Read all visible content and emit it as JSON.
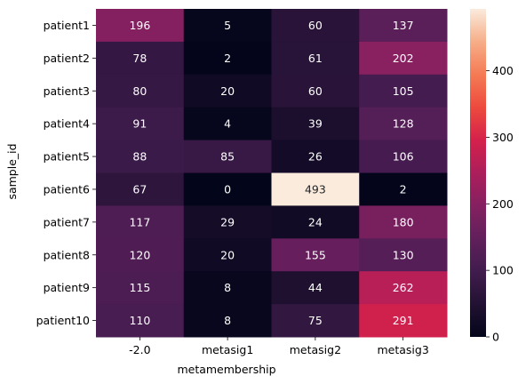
{
  "chart_data": {
    "type": "heatmap",
    "title": "",
    "xlabel": "metamembership",
    "ylabel": "sample_id",
    "x_categories": [
      "-2.0",
      "metasig1",
      "metasig2",
      "metasig3"
    ],
    "y_categories": [
      "patient1",
      "patient2",
      "patient3",
      "patient4",
      "patient5",
      "patient6",
      "patient7",
      "patient8",
      "patient9",
      "patient10"
    ],
    "values": [
      [
        196,
        5,
        60,
        137
      ],
      [
        78,
        2,
        61,
        202
      ],
      [
        80,
        20,
        60,
        105
      ],
      [
        91,
        4,
        39,
        128
      ],
      [
        88,
        85,
        26,
        106
      ],
      [
        67,
        0,
        493,
        2
      ],
      [
        117,
        29,
        24,
        180
      ],
      [
        120,
        20,
        155,
        130
      ],
      [
        115,
        8,
        44,
        262
      ],
      [
        110,
        8,
        75,
        291
      ]
    ],
    "colorbar": {
      "min": 0,
      "max": 493,
      "ticks": [
        0,
        100,
        200,
        300,
        400
      ],
      "colormap": "rocket"
    }
  }
}
